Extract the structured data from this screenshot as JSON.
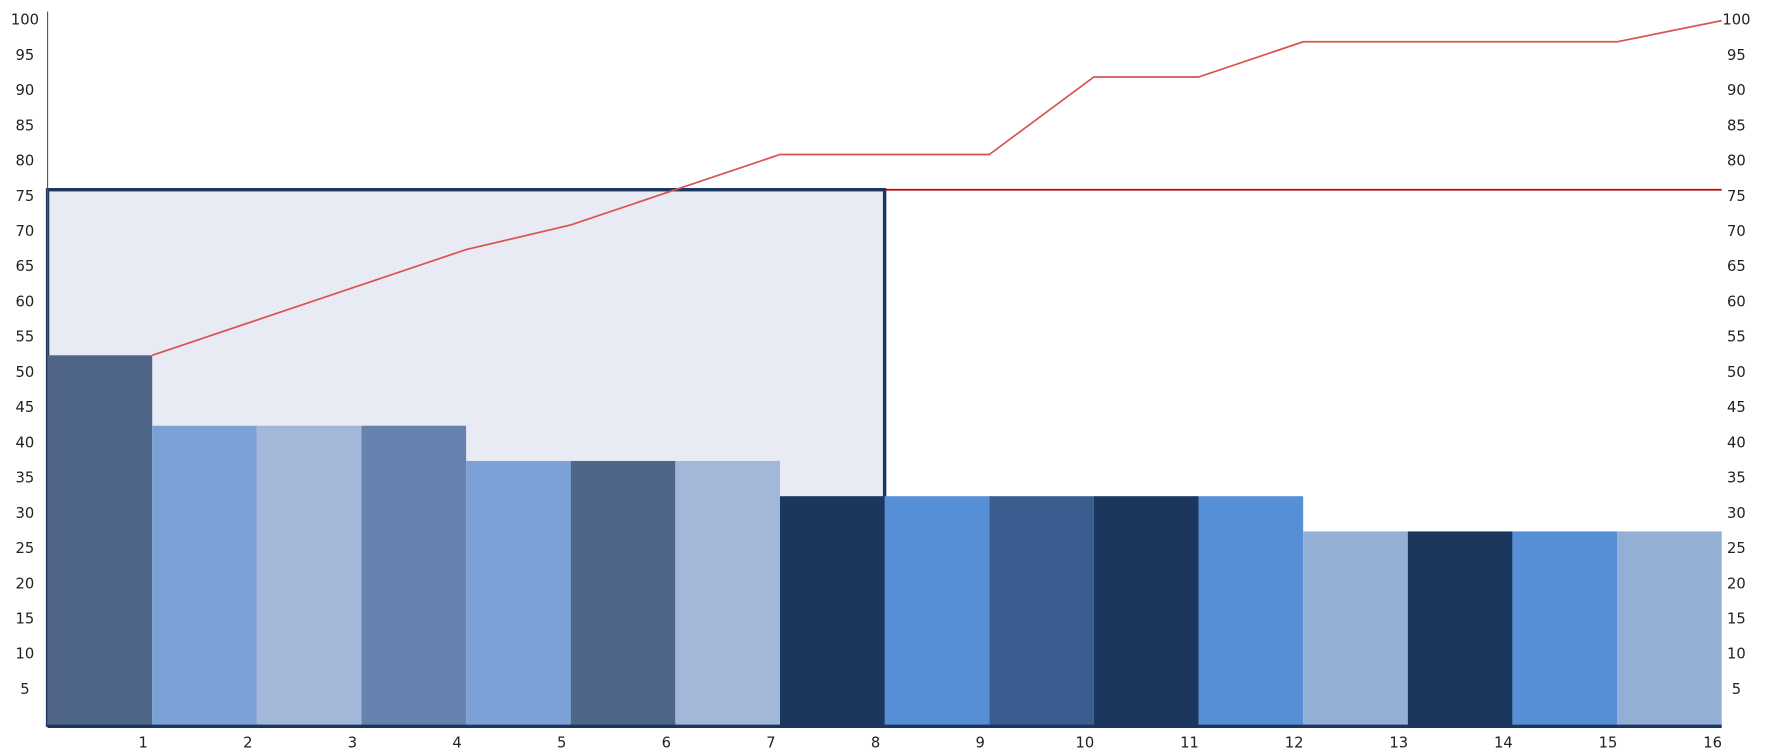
{
  "chart_data": {
    "type": "pareto",
    "categories": [
      "1",
      "2",
      "3",
      "4",
      "5",
      "6",
      "7",
      "8",
      "9",
      "10",
      "11",
      "12",
      "13",
      "14",
      "15",
      "16"
    ],
    "values": [
      52.5,
      42.5,
      42.5,
      42.5,
      37.5,
      37.5,
      37.5,
      32.5,
      32.5,
      32.5,
      32.5,
      32.5,
      27.5,
      27.5,
      27.5,
      27.5
    ],
    "colors": [
      "#4f6688",
      "#7ba1d7",
      "#a3b8d9",
      "#6682ae",
      "#7ba1d7",
      "#4f6688",
      "#a3b8d9",
      "#1c375e",
      "#578fd6",
      "#3a5c8e",
      "#1c375e",
      "#578fd6",
      "#93afd6",
      "#1c375e",
      "#578fd6",
      "#93afd6"
    ],
    "cumulative": [
      52.5,
      57.5,
      62.5,
      67.5,
      71,
      76,
      81,
      81,
      81,
      92,
      92,
      97,
      97,
      97,
      97,
      100
    ],
    "line_color": "#d9534f",
    "threshold": 76,
    "highlight_count": 8,
    "ylim": [
      0,
      100
    ],
    "yticks": [
      5,
      10,
      15,
      20,
      25,
      30,
      35,
      40,
      45,
      50,
      55,
      60,
      65,
      70,
      75,
      80,
      85,
      90,
      95,
      100
    ],
    "y2lim": [
      0,
      100
    ],
    "y2ticks": [
      5,
      10,
      15,
      20,
      25,
      30,
      35,
      40,
      45,
      50,
      55,
      60,
      65,
      70,
      75,
      80,
      85,
      90,
      95,
      100
    ]
  }
}
